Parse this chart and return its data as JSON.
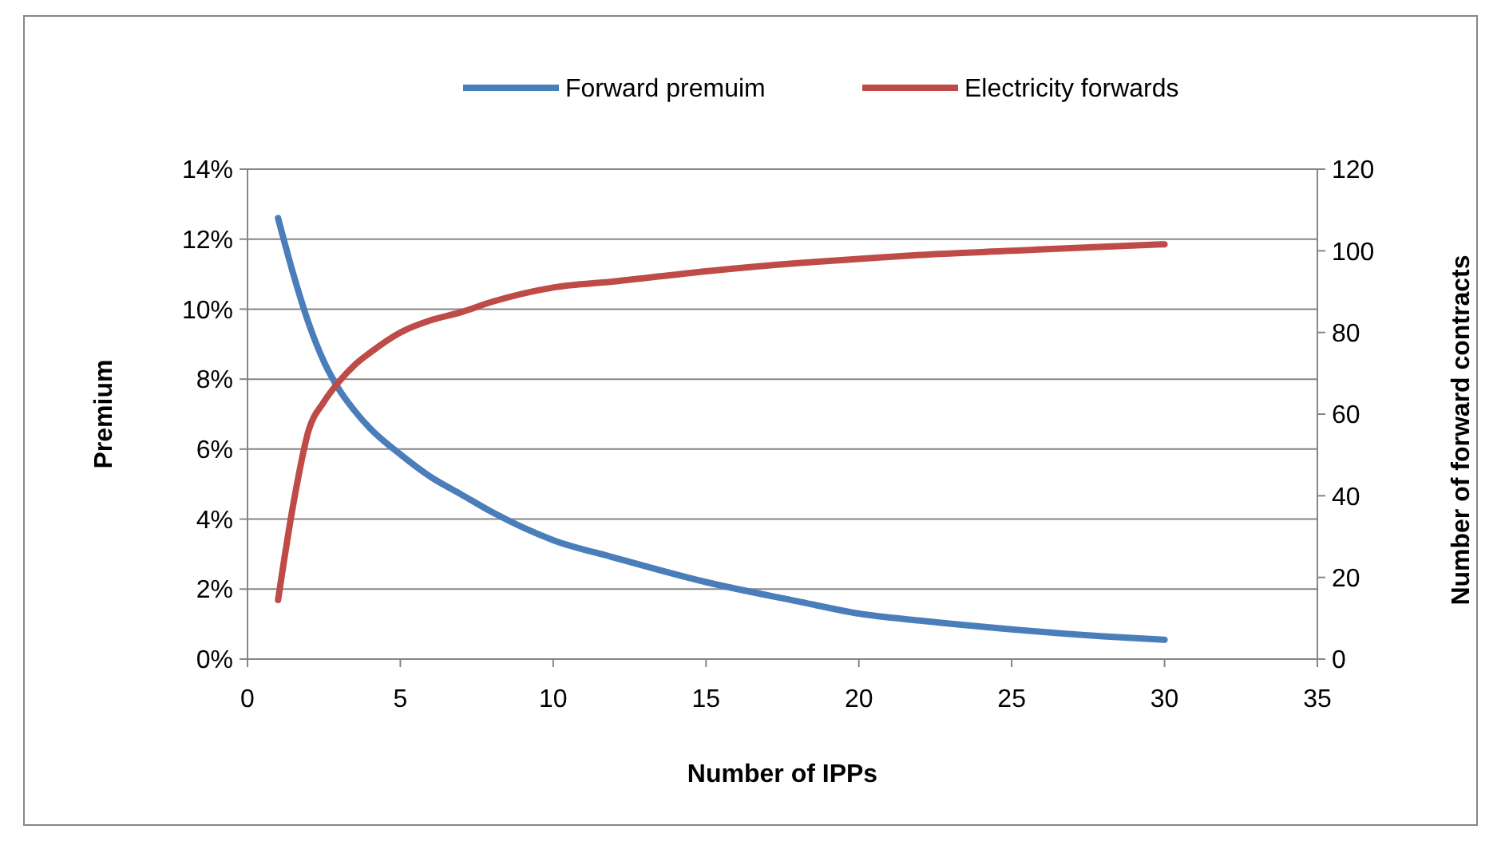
{
  "chart_data": {
    "type": "line",
    "xlabel": "Number of IPPs",
    "ylabel": "Premium",
    "y2label": "Number of forward contracts",
    "x": [
      1,
      1.5,
      2,
      2.5,
      3,
      3.5,
      4,
      5,
      6,
      7,
      8,
      10,
      12,
      15,
      18,
      20,
      22,
      25,
      28,
      30
    ],
    "series": [
      {
        "name": "Forward premuim",
        "color": "#4a7ebb",
        "values": [
          12.6,
          11,
          9.6,
          8.5,
          7.7,
          7.1,
          6.6,
          5.85,
          5.2,
          4.7,
          4.2,
          3.4,
          2.9,
          2.2,
          1.65,
          1.3,
          1.1,
          0.85,
          0.65,
          0.55
        ]
      },
      {
        "name": "Electricity forwards",
        "color": "#be4b48",
        "axis": "y2",
        "values": [
          14.5,
          38,
          56,
          63,
          68,
          72,
          75,
          80,
          83,
          85,
          87.5,
          91,
          92.5,
          95,
          97,
          98,
          99,
          100,
          101,
          101.6
        ]
      }
    ],
    "xlim": [
      0,
      35
    ],
    "xticks": [
      0,
      5,
      10,
      15,
      20,
      25,
      30,
      35
    ],
    "ylim": [
      0,
      14
    ],
    "yticks": [
      {
        "value": 0,
        "label": "0%"
      },
      {
        "value": 2,
        "label": "2%"
      },
      {
        "value": 4,
        "label": "4%"
      },
      {
        "value": 6,
        "label": "6%"
      },
      {
        "value": 8,
        "label": "8%"
      },
      {
        "value": 10,
        "label": "10%"
      },
      {
        "value": 12,
        "label": "12%"
      },
      {
        "value": 14,
        "label": "14%"
      }
    ],
    "y2lim": [
      0,
      120
    ],
    "y2ticks": [
      0,
      20,
      40,
      60,
      80,
      100,
      120
    ],
    "grid": "y",
    "legend": "top",
    "marker": "none",
    "line_style": "solid"
  }
}
